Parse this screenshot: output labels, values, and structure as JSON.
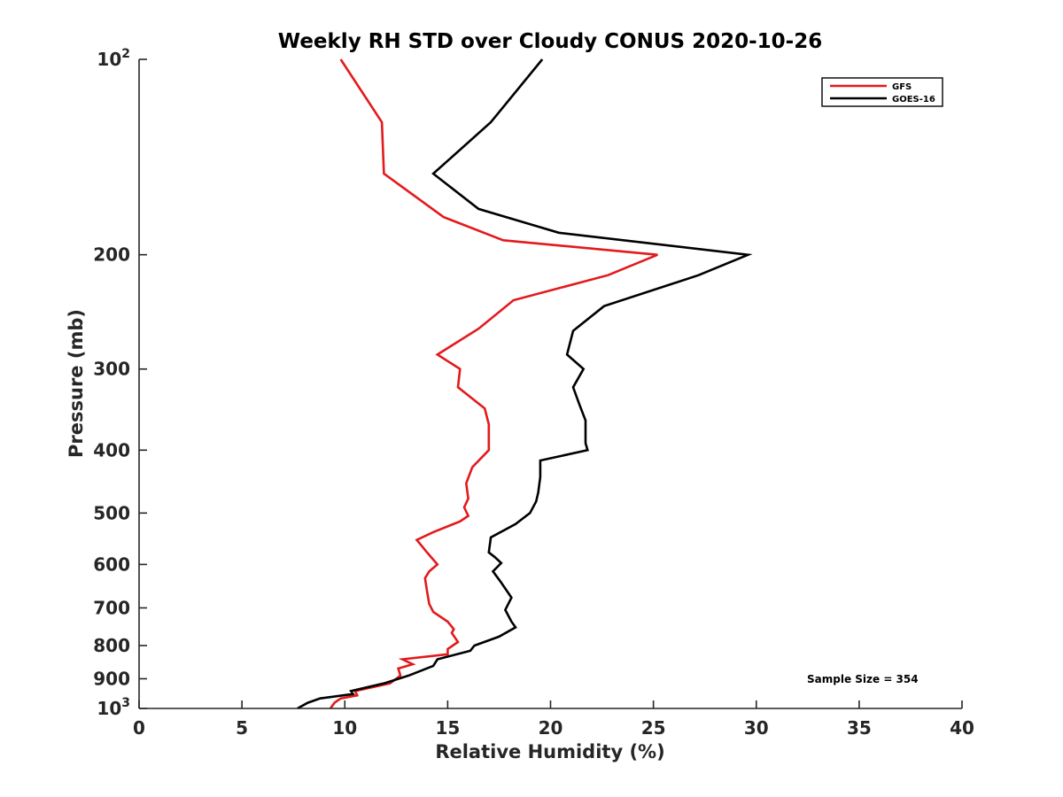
{
  "chart_data": {
    "type": "line",
    "title": "Weekly RH STD over Cloudy CONUS 2020-10-26",
    "xlabel": "Relative Humidity (%)",
    "ylabel": "Pressure (mb)",
    "xlim": [
      0,
      40
    ],
    "ylim": [
      100,
      1000
    ],
    "y_scale": "log",
    "y_reversed": true,
    "grid": false,
    "legend_position": "top-right",
    "x_ticks": [
      "0",
      "5",
      "10",
      "15",
      "20",
      "25",
      "30",
      "35",
      "40"
    ],
    "y_ticks": [
      {
        "value": 100,
        "base": "10",
        "exp": "2"
      },
      {
        "value": 200,
        "label": "200"
      },
      {
        "value": 300,
        "label": "300"
      },
      {
        "value": 400,
        "label": "400"
      },
      {
        "value": 500,
        "label": "500"
      },
      {
        "value": 600,
        "label": "600"
      },
      {
        "value": 700,
        "label": "700"
      },
      {
        "value": 800,
        "label": "800"
      },
      {
        "value": 900,
        "label": "900"
      },
      {
        "value": 1000,
        "base": "10",
        "exp": "3"
      }
    ],
    "series": [
      {
        "name": "GFS",
        "color": "#e31a1c",
        "points": [
          [
            9.8,
            100
          ],
          [
            11.8,
            125
          ],
          [
            11.9,
            150
          ],
          [
            14.8,
            175
          ],
          [
            17.7,
            190
          ],
          [
            25.2,
            200
          ],
          [
            22.8,
            215
          ],
          [
            18.2,
            235
          ],
          [
            16.5,
            260
          ],
          [
            14.5,
            285
          ],
          [
            15.6,
            300
          ],
          [
            15.5,
            320
          ],
          [
            16.8,
            345
          ],
          [
            17.0,
            365
          ],
          [
            17.0,
            400
          ],
          [
            16.2,
            425
          ],
          [
            15.9,
            450
          ],
          [
            16.0,
            475
          ],
          [
            15.8,
            490
          ],
          [
            16.0,
            505
          ],
          [
            15.6,
            515
          ],
          [
            14.3,
            535
          ],
          [
            13.5,
            550
          ],
          [
            14.0,
            575
          ],
          [
            14.5,
            600
          ],
          [
            14.1,
            615
          ],
          [
            13.9,
            630
          ],
          [
            14.0,
            660
          ],
          [
            14.1,
            690
          ],
          [
            14.3,
            710
          ],
          [
            15.0,
            735
          ],
          [
            15.3,
            755
          ],
          [
            15.2,
            765
          ],
          [
            15.5,
            790
          ],
          [
            15.0,
            810
          ],
          [
            15.0,
            825
          ],
          [
            12.8,
            840
          ],
          [
            13.3,
            855
          ],
          [
            12.6,
            868
          ],
          [
            12.7,
            890
          ],
          [
            12.2,
            915
          ],
          [
            10.5,
            940
          ],
          [
            10.6,
            955
          ],
          [
            9.8,
            965
          ],
          [
            9.5,
            980
          ],
          [
            9.3,
            1000
          ]
        ]
      },
      {
        "name": "GOES-16",
        "color": "#000000",
        "points": [
          [
            19.6,
            100
          ],
          [
            17.1,
            125
          ],
          [
            14.3,
            150
          ],
          [
            16.5,
            170
          ],
          [
            20.4,
            185
          ],
          [
            29.6,
            200
          ],
          [
            27.2,
            215
          ],
          [
            22.6,
            240
          ],
          [
            21.1,
            262
          ],
          [
            20.8,
            285
          ],
          [
            21.6,
            300
          ],
          [
            21.1,
            320
          ],
          [
            21.4,
            340
          ],
          [
            21.7,
            360
          ],
          [
            21.7,
            390
          ],
          [
            21.8,
            400
          ],
          [
            19.5,
            415
          ],
          [
            19.5,
            440
          ],
          [
            19.4,
            465
          ],
          [
            19.3,
            480
          ],
          [
            19.0,
            500
          ],
          [
            18.3,
            520
          ],
          [
            17.1,
            545
          ],
          [
            17.0,
            575
          ],
          [
            17.3,
            585
          ],
          [
            17.6,
            597
          ],
          [
            17.2,
            615
          ],
          [
            17.6,
            640
          ],
          [
            18.1,
            675
          ],
          [
            17.8,
            705
          ],
          [
            18.1,
            735
          ],
          [
            18.3,
            750
          ],
          [
            17.5,
            775
          ],
          [
            16.3,
            800
          ],
          [
            16.1,
            815
          ],
          [
            14.5,
            840
          ],
          [
            14.3,
            860
          ],
          [
            13.1,
            890
          ],
          [
            11.9,
            915
          ],
          [
            10.3,
            940
          ],
          [
            10.4,
            950
          ],
          [
            8.8,
            965
          ],
          [
            8.2,
            980
          ],
          [
            7.7,
            1000
          ]
        ]
      }
    ],
    "annotations": [
      "Sample Size = 354"
    ]
  }
}
